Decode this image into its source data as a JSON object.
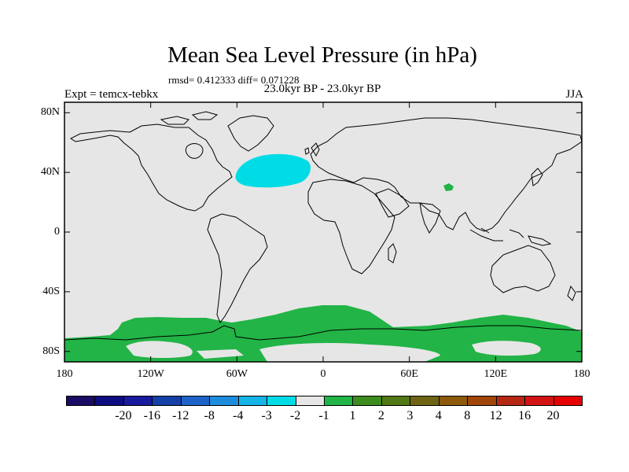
{
  "title": "Mean Sea Level Pressure (in hPa)",
  "stats": "rmsd= 0.412333 diff= 0.071228",
  "experiment": "Expt = temcx-tebkx",
  "period": "23.0kyr BP - 23.0kyr BP",
  "season": "JJA",
  "map": {
    "background_color": "#e6e6e6",
    "coastline_color": "#000000",
    "x_ticks": [
      "180",
      "120W",
      "60W",
      "0",
      "60E",
      "120E",
      "180"
    ],
    "y_ticks": [
      "80N",
      "40N",
      "0",
      "40S",
      "80S"
    ]
  },
  "legend": {
    "colors": [
      "#1a0b64",
      "#0d0d80",
      "#1a1a9e",
      "#1440a8",
      "#1e64c8",
      "#1e8cdc",
      "#14b4e6",
      "#00dce6",
      "#e6e6e6",
      "#22b446",
      "#3c8c1e",
      "#507814",
      "#6e6414",
      "#8c5a0a",
      "#a0460a",
      "#b42814",
      "#d21414",
      "#e60000"
    ],
    "labels": [
      "-20",
      "-16",
      "-12",
      "-8",
      "-4",
      "-3",
      "-2",
      "-1",
      "1",
      "2",
      "3",
      "4",
      "8",
      "12",
      "16",
      "20"
    ]
  }
}
